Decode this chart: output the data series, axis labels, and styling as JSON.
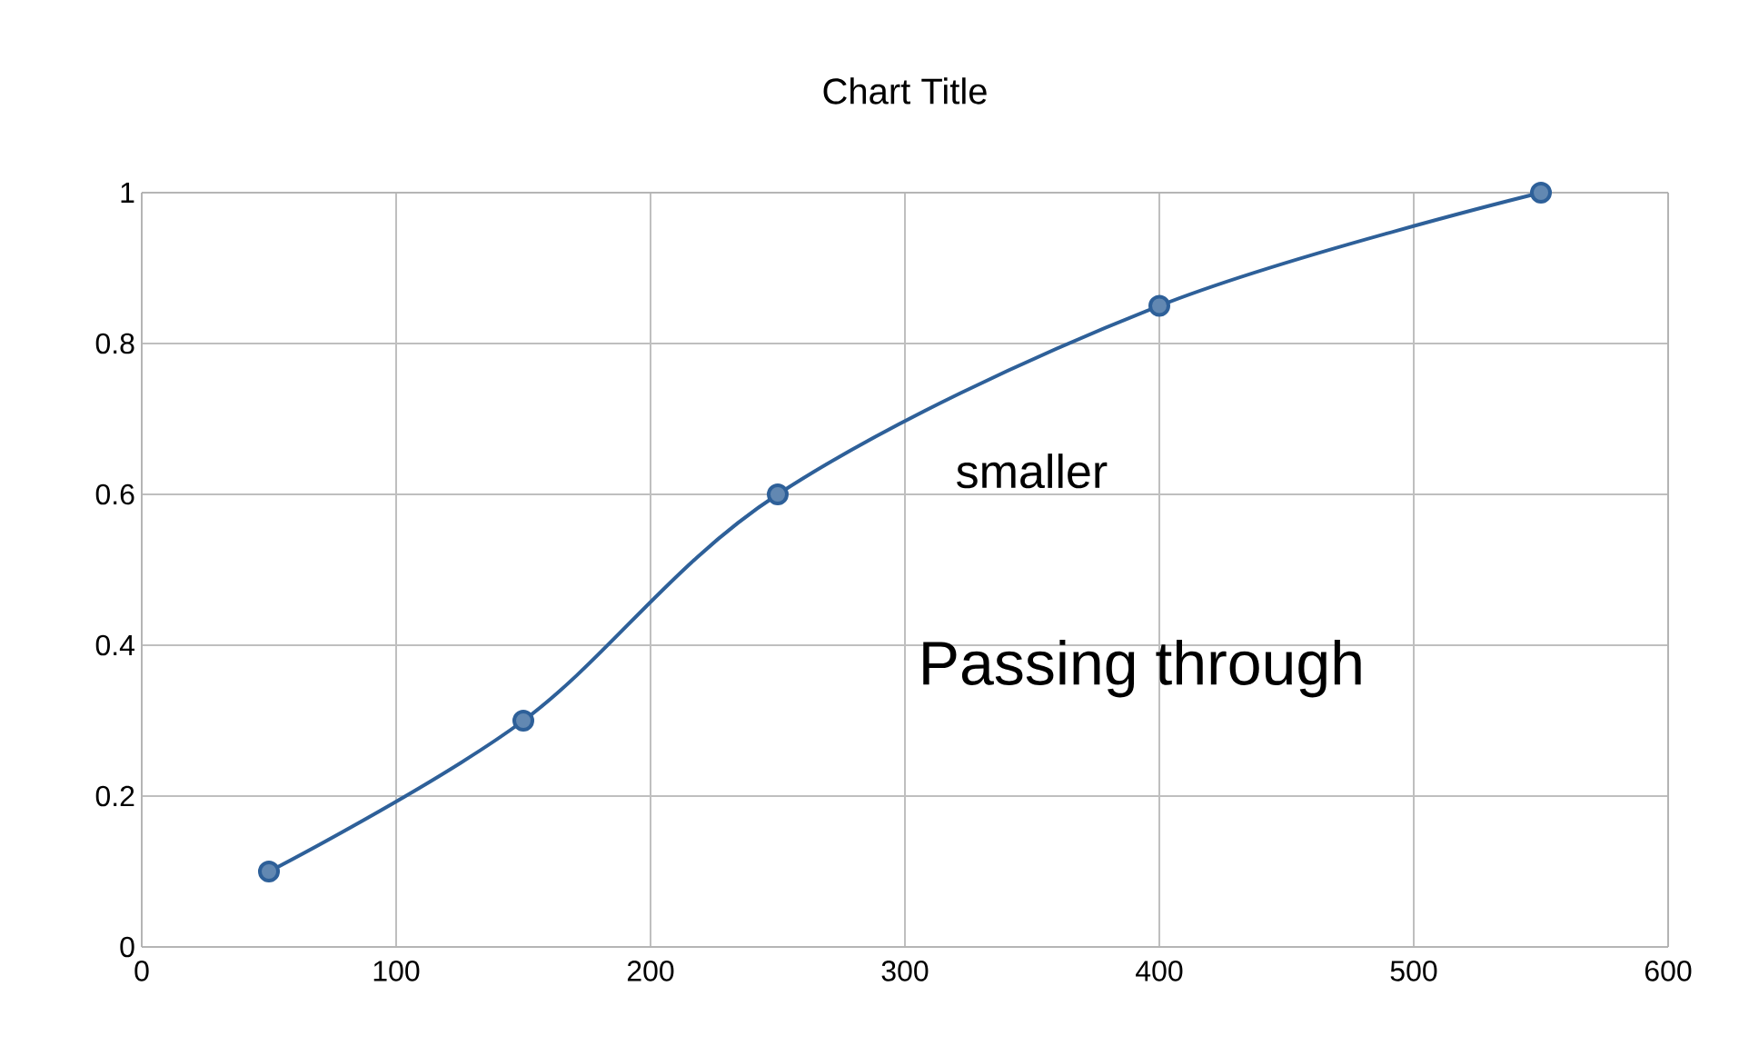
{
  "chart_data": {
    "type": "line",
    "title": "Chart Title",
    "x": [
      50,
      150,
      250,
      400,
      550
    ],
    "series": [
      {
        "color": "#2e6099",
        "values": [
          0.1,
          0.3,
          0.6,
          0.85,
          1
        ]
      }
    ],
    "xlim": [
      0,
      600
    ],
    "xticks": [
      0,
      100,
      200,
      300,
      400,
      500,
      600
    ],
    "ylim": [
      0,
      1
    ],
    "yticks": [
      0,
      0.2,
      0.4,
      0.6,
      0.8,
      1
    ],
    "grid": true,
    "marker": "circle",
    "line_style": "solid",
    "annotations": [
      "smaller",
      "Passing through"
    ]
  }
}
